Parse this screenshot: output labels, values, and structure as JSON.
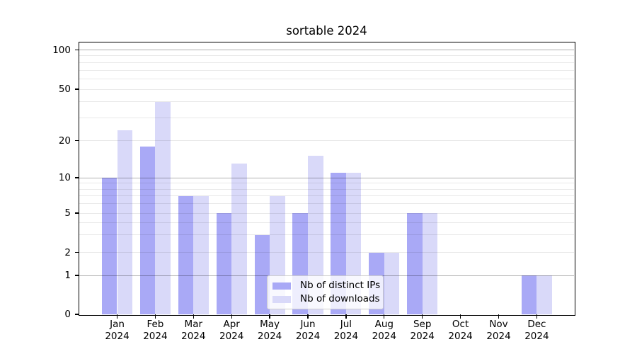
{
  "chart_data": {
    "type": "bar",
    "title": "sortable 2024",
    "categories": [
      "Jan 2024",
      "Feb 2024",
      "Mar 2024",
      "Apr 2024",
      "May 2024",
      "Jun 2024",
      "Jul 2024",
      "Aug 2024",
      "Sep 2024",
      "Oct 2024",
      "Nov 2024",
      "Dec 2024"
    ],
    "series": [
      {
        "name": "Nb of distinct IPs",
        "key": "distinct-ips",
        "color": "#a9a9f6",
        "values": [
          10,
          18,
          7,
          5,
          3,
          5,
          11,
          2,
          5,
          0,
          0,
          1
        ]
      },
      {
        "name": "Nb of downloads",
        "key": "downloads",
        "color": "#d9d9f9",
        "values": [
          24,
          40,
          7,
          13,
          7,
          15,
          11,
          2,
          5,
          0,
          0,
          1
        ]
      }
    ],
    "yscale": "symlog",
    "ylim": [
      0,
      112
    ],
    "y_ticks": [
      0,
      1,
      2,
      5,
      10,
      20,
      50,
      100
    ],
    "y_major_gridlines": [
      1,
      10,
      100
    ],
    "y_minor_gridlines": [
      2,
      3,
      4,
      5,
      6,
      7,
      8,
      9,
      20,
      30,
      40,
      50,
      60,
      70,
      80,
      90
    ],
    "grid": true,
    "legend_position": "lower-center-inside"
  },
  "colors": {
    "bar_distinct_ips": "#a9a9f6",
    "bar_downloads": "#d9d9f9",
    "grid_major": "rgba(0,0,0,0.31)",
    "grid_minor": "rgba(0,0,0,0.085)",
    "axis": "#000000",
    "text": "#000000",
    "legend_border": "#cccccc",
    "legend_background": "rgba(255,255,255,0.8)"
  }
}
